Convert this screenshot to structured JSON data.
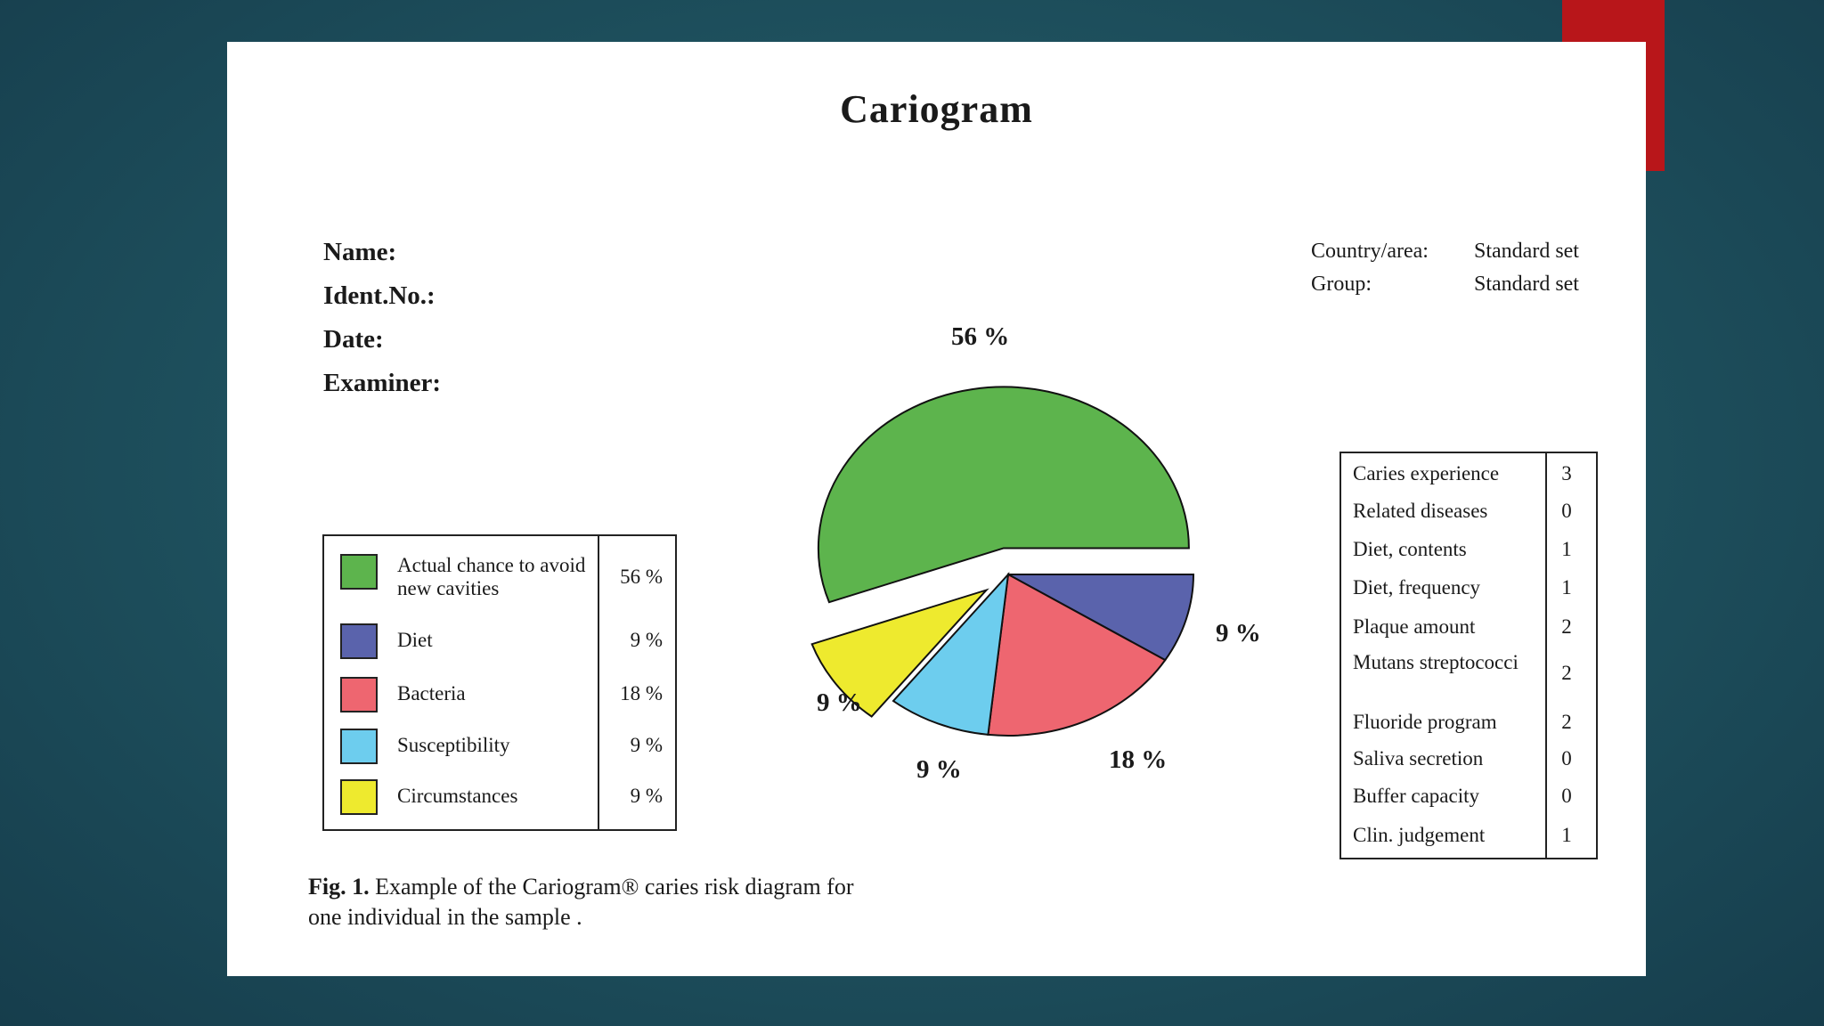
{
  "title": "Cariogram",
  "patient_fields": [
    "Name:",
    "Ident.No.:",
    "Date:",
    "Examiner:"
  ],
  "meta": [
    {
      "key": "Country/area:",
      "value": "Standard set"
    },
    {
      "key": "Group:",
      "value": "Standard set"
    }
  ],
  "legend": [
    {
      "label": "Actual chance to avoid new cavities",
      "pct": "56 %",
      "color": "#5db44d"
    },
    {
      "label": "Diet",
      "pct": "9 %",
      "color": "#5a63ac"
    },
    {
      "label": "Bacteria",
      "pct": "18 %",
      "color": "#ee6670"
    },
    {
      "label": "Susceptibility",
      "pct": "9 %",
      "color": "#6dcdee"
    },
    {
      "label": "Circumstances",
      "pct": "9 %",
      "color": "#eeea2e"
    }
  ],
  "risk_factors": [
    {
      "label": "Caries experience",
      "value": "3"
    },
    {
      "label": "Related diseases",
      "value": "0"
    },
    {
      "label": "Diet, contents",
      "value": "1"
    },
    {
      "label": "Diet, frequency",
      "value": "1"
    },
    {
      "label": "Plaque amount",
      "value": "2"
    },
    {
      "label": "Mutans streptococci",
      "value": "2"
    },
    {
      "label": "Fluoride program",
      "value": "2"
    },
    {
      "label": "Saliva secretion",
      "value": "0"
    },
    {
      "label": "Buffer capacity",
      "value": "0"
    },
    {
      "label": "Clin. judgement",
      "value": "1"
    }
  ],
  "caption": {
    "bold": "Fig. 1.",
    "text": " Example of the Cariogram® caries risk diagram for one individual in the sample ."
  },
  "chart_data": {
    "type": "pie",
    "title": "",
    "slices": [
      {
        "name": "Actual chance to avoid new cavities",
        "value": 56,
        "label": "56 %",
        "color": "#5db44d",
        "exploded": true
      },
      {
        "name": "Diet",
        "value": 9,
        "label": "9 %",
        "color": "#5a63ac"
      },
      {
        "name": "Bacteria",
        "value": 18,
        "label": "18 %",
        "color": "#ee6670"
      },
      {
        "name": "Susceptibility",
        "value": 9,
        "label": "9 %",
        "color": "#6dcdee"
      },
      {
        "name": "Circumstances",
        "value": 9,
        "label": "9 %",
        "color": "#eeea2e",
        "exploded": true
      }
    ]
  }
}
